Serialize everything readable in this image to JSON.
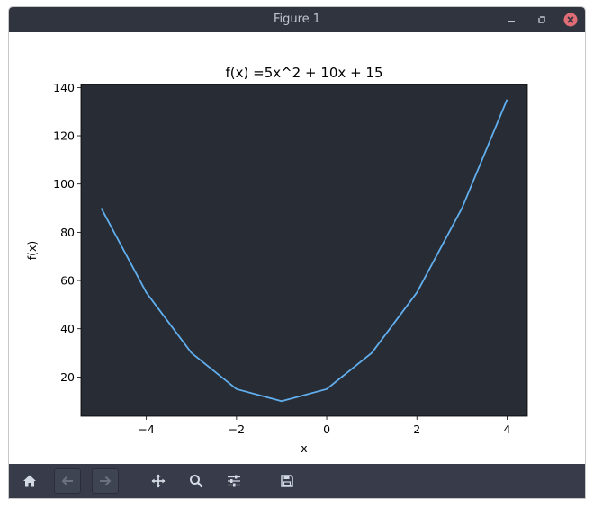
{
  "window": {
    "title": "Figure 1"
  },
  "titlebar_buttons": {
    "minimize_icon": "minimize-icon",
    "maximize_icon": "maximize-icon",
    "close_icon": "close-icon",
    "close_color": "#e06c75"
  },
  "toolbar": {
    "buttons": [
      {
        "name": "home-button",
        "icon": "home-icon"
      },
      {
        "name": "back-button",
        "icon": "arrow-left-icon"
      },
      {
        "name": "forward-button",
        "icon": "arrow-right-icon"
      },
      {
        "name": "pan-button",
        "icon": "move-icon"
      },
      {
        "name": "zoom-button",
        "icon": "search-icon"
      },
      {
        "name": "configure-subplots-button",
        "icon": "sliders-icon"
      },
      {
        "name": "save-button",
        "icon": "save-icon"
      }
    ]
  },
  "chart_data": {
    "type": "line",
    "title": "f(x) =5x^2 + 10x + 15",
    "xlabel": "x",
    "ylabel": "f(x)",
    "x": [
      -5,
      -4,
      -3,
      -2,
      -1,
      0,
      1,
      2,
      3,
      4
    ],
    "series": [
      {
        "values": [
          90,
          55,
          30,
          15,
          10,
          15,
          30,
          55,
          90,
          135
        ],
        "color": "#61afef"
      }
    ],
    "xticks": [
      -4,
      -2,
      0,
      2,
      4
    ],
    "xtick_labels": [
      "−4",
      "−2",
      "0",
      "2",
      "4"
    ],
    "yticks": [
      20,
      40,
      60,
      80,
      100,
      120,
      140
    ],
    "ytick_labels": [
      "20",
      "40",
      "60",
      "80",
      "100",
      "120",
      "140"
    ],
    "xlim": [
      -5.45,
      4.45
    ],
    "ylim": [
      3.75,
      141.25
    ],
    "grid": false,
    "plot_background": "#282c34"
  }
}
